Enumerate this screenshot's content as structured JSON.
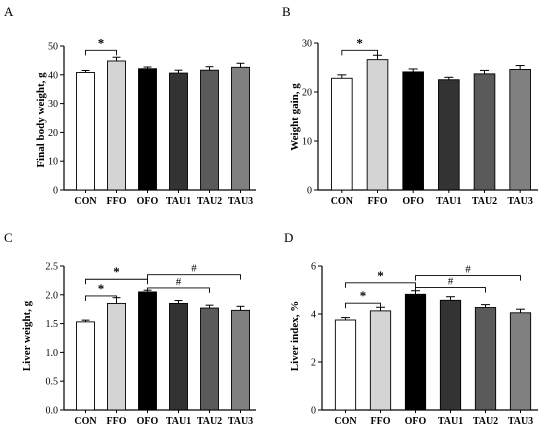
{
  "chart_data": [
    {
      "type": "bar",
      "panel": "A",
      "ylabel": "Final body weight, g",
      "categories": [
        "CON",
        "FFO",
        "OFO",
        "TAU1",
        "TAU2",
        "TAU3"
      ],
      "values": [
        40.8,
        44.8,
        42.1,
        40.6,
        41.6,
        42.6
      ],
      "errors": [
        0.7,
        1.3,
        0.6,
        1.0,
        1.2,
        1.4
      ],
      "colors": [
        "#ffffff",
        "#d4d4d4",
        "#000000",
        "#333333",
        "#5a5a5a",
        "#808080"
      ],
      "ylim": [
        0,
        50
      ],
      "yticks": [
        0,
        10,
        20,
        30,
        40,
        50
      ],
      "annotations": [
        {
          "from": 0,
          "to": 1,
          "y": 48.5,
          "label": "*"
        }
      ]
    },
    {
      "type": "bar",
      "panel": "B",
      "ylabel": "Weight gain, g",
      "categories": [
        "CON",
        "FFO",
        "OFO",
        "TAU1",
        "TAU2",
        "TAU3"
      ],
      "values": [
        22.8,
        26.6,
        24.1,
        22.5,
        23.7,
        24.6
      ],
      "errors": [
        0.7,
        0.9,
        0.6,
        0.5,
        0.7,
        0.8
      ],
      "colors": [
        "#ffffff",
        "#d4d4d4",
        "#000000",
        "#333333",
        "#5a5a5a",
        "#808080"
      ],
      "ylim": [
        0,
        30
      ],
      "yticks": [
        0,
        10,
        20,
        30
      ],
      "annotations": [
        {
          "from": 0,
          "to": 1,
          "y": 28.5,
          "label": "*"
        }
      ]
    },
    {
      "type": "bar",
      "panel": "C",
      "ylabel": "Liver weight, g",
      "categories": [
        "CON",
        "FFO",
        "OFO",
        "TAU1",
        "TAU2",
        "TAU3"
      ],
      "values": [
        1.53,
        1.85,
        2.05,
        1.85,
        1.77,
        1.73
      ],
      "errors": [
        0.03,
        0.1,
        0.03,
        0.05,
        0.05,
        0.07
      ],
      "colors": [
        "#ffffff",
        "#d4d4d4",
        "#000000",
        "#333333",
        "#5a5a5a",
        "#808080"
      ],
      "ylim": [
        0,
        2.5
      ],
      "yticks": [
        "0.0",
        "0.5",
        "1.0",
        "1.5",
        "2.0",
        "2.5"
      ],
      "annotations": [
        {
          "from": 0,
          "to": 1,
          "y": 1.98,
          "label": "*"
        },
        {
          "from": 0,
          "to": 2,
          "y": 2.27,
          "label": "*"
        },
        {
          "from": 2,
          "to": 4,
          "y": 2.12,
          "label": "#"
        },
        {
          "from": 2,
          "to": 5,
          "y": 2.35,
          "label": "#"
        }
      ]
    },
    {
      "type": "bar",
      "panel": "D",
      "ylabel": "Liver index, %",
      "categories": [
        "CON",
        "FFO",
        "OFO",
        "TAU1",
        "TAU2",
        "TAU3"
      ],
      "values": [
        3.75,
        4.13,
        4.82,
        4.57,
        4.27,
        4.05
      ],
      "errors": [
        0.1,
        0.15,
        0.15,
        0.15,
        0.12,
        0.15
      ],
      "colors": [
        "#ffffff",
        "#d4d4d4",
        "#000000",
        "#333333",
        "#5a5a5a",
        "#808080"
      ],
      "ylim": [
        0,
        6
      ],
      "yticks": [
        0,
        2,
        4,
        6
      ],
      "annotations": [
        {
          "from": 0,
          "to": 1,
          "y": 4.45,
          "label": "*"
        },
        {
          "from": 0,
          "to": 2,
          "y": 5.3,
          "label": "*"
        },
        {
          "from": 2,
          "to": 4,
          "y": 5.1,
          "label": "#"
        },
        {
          "from": 2,
          "to": 5,
          "y": 5.6,
          "label": "#"
        }
      ]
    }
  ]
}
